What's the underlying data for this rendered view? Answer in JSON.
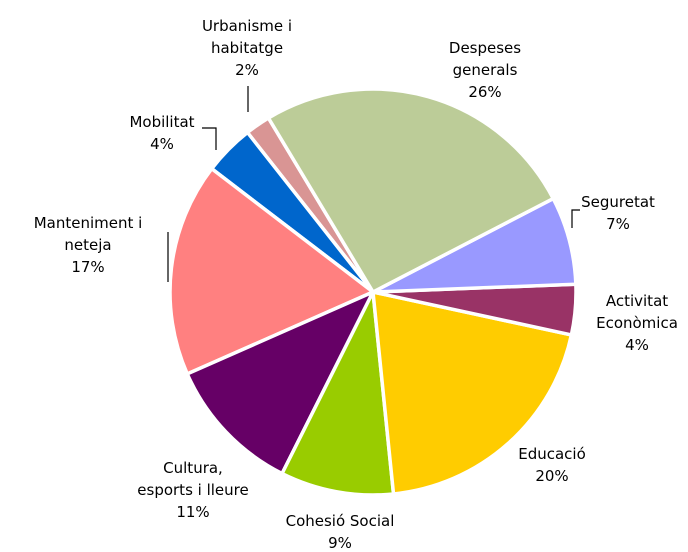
{
  "chart_data": {
    "type": "pie",
    "categories": [
      "Despeses generals",
      "Seguretat",
      "Activitat Econòmica",
      "Educació",
      "Cohesió Social",
      "Cultura, esports i lleure",
      "Manteniment i neteja",
      "Mobilitat",
      "Urbanisme i habitatge"
    ],
    "values": [
      26,
      7,
      4,
      20,
      9,
      11,
      17,
      4,
      2
    ],
    "value_labels": [
      "26%",
      "7%",
      "4%",
      "20%",
      "9%",
      "11%",
      "17%",
      "4%",
      "2%"
    ],
    "colors": [
      "#bccc98",
      "#9999ff",
      "#993366",
      "#ffcc00",
      "#99cc00",
      "#660066",
      "#ff8080",
      "#0066cc",
      "#d99594"
    ]
  }
}
